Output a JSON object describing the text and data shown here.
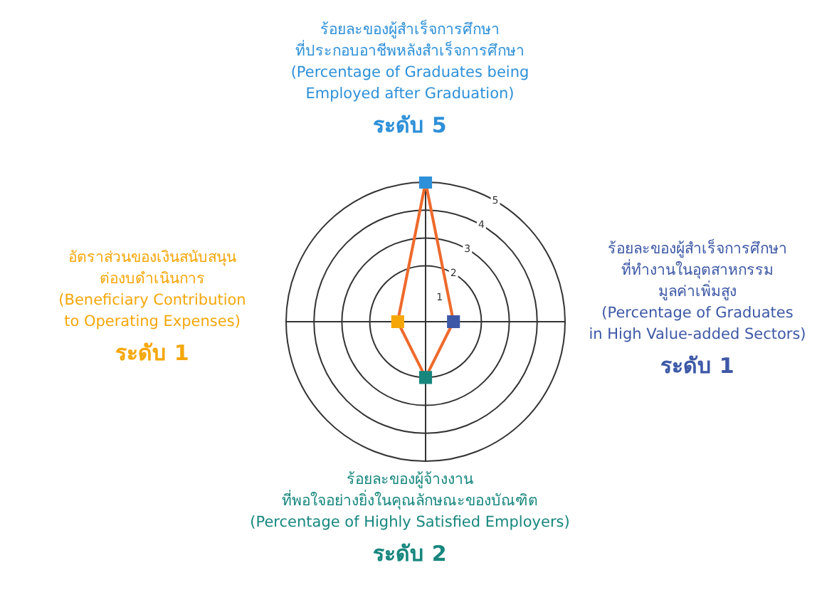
{
  "chart_data": {
    "type": "radar",
    "categories": [
      "ร้อยละของผู้สำเร็จการศึกษา\nที่ประกอบอาชีพหลังสำเร็จการศึกษา\n(Percentage of Graduates being\nEmployed after Graduation)\nระดับ 5",
      "ร้อยละของผู้สำเร็จการศึกษา\nที่ทำงานในอุตสาหกรรม\nมูลค่าเพิ่มสูง\n(Percentage of Graduates\nin High Value-added Sectors)\nระดับ 1",
      "ร้อยละของผู้จ้างงาน\nที่พอใจอย่างยิ่งในคุณลักษณะของบัณฑิต\n(Percentage of Highly Satisfied Employers)\nระดับ 2",
      "อัตราส่วนของเงินสนับสนุน\nต่องบดำเนินการ\n(Beneficiary Contribution\nto Operating Expenses)\nระดับ 1"
    ],
    "series": [
      {
        "color": "#ee6a2c",
        "colors": [
          "#2e90d8",
          "#3d58a6",
          "#17877e",
          "#f5a70a"
        ],
        "values": [
          5,
          1,
          2,
          1
        ]
      }
    ],
    "ylim": [
      0,
      5
    ],
    "yticks": [
      1,
      2,
      3,
      4,
      5
    ],
    "grid": true,
    "marker": "square",
    "legend": false
  }
}
